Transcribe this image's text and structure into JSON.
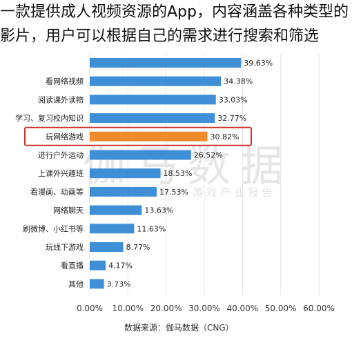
{
  "caption": "一款提供成人视频资源的App，内容涵盖各种类型的影片，用户可以根据自己的需求进行搜索和筛选",
  "watermark": {
    "logo_text": "伽马数据",
    "sub_text": "官方信息号 · 游戏产业报告"
  },
  "source": "数据来源：伽马数据（CNG）",
  "colors": {
    "bar": "#3f8fd6",
    "highlight_bar": "#f08a2a",
    "highlight_border": "#c9312b",
    "grid": "#e4e4e4"
  },
  "chart_data": {
    "type": "bar",
    "orientation": "horizontal",
    "title": "",
    "xlabel": "",
    "ylabel": "",
    "xlim": [
      0,
      60
    ],
    "x_ticks": [
      "0.00%",
      "10.00%",
      "20.00%",
      "30.00%",
      "40.00%",
      "50.00%",
      "60.00%"
    ],
    "grid": true,
    "highlight_category": "玩网络游戏",
    "categories": [
      "",
      "看网络视频",
      "阅读课外读物",
      "学习、复习校内知识",
      "玩网络游戏",
      "进行户外运动",
      "上课外兴趣班",
      "看漫画、动画等",
      "网络聊天",
      "刷微博、小红书等",
      "玩线下游戏",
      "看直播",
      "其他"
    ],
    "values": [
      39.63,
      34.38,
      33.03,
      32.77,
      30.82,
      26.52,
      18.53,
      17.53,
      13.63,
      11.63,
      8.77,
      4.17,
      3.73
    ],
    "value_labels": [
      "39.63%",
      "34.38%",
      "33.03%",
      "32.77%",
      "30.82%",
      "26.52%",
      "18.53%",
      "17.53%",
      "13.63%",
      "11.63%",
      "8.77%",
      "4.17%",
      "3.73%"
    ]
  }
}
